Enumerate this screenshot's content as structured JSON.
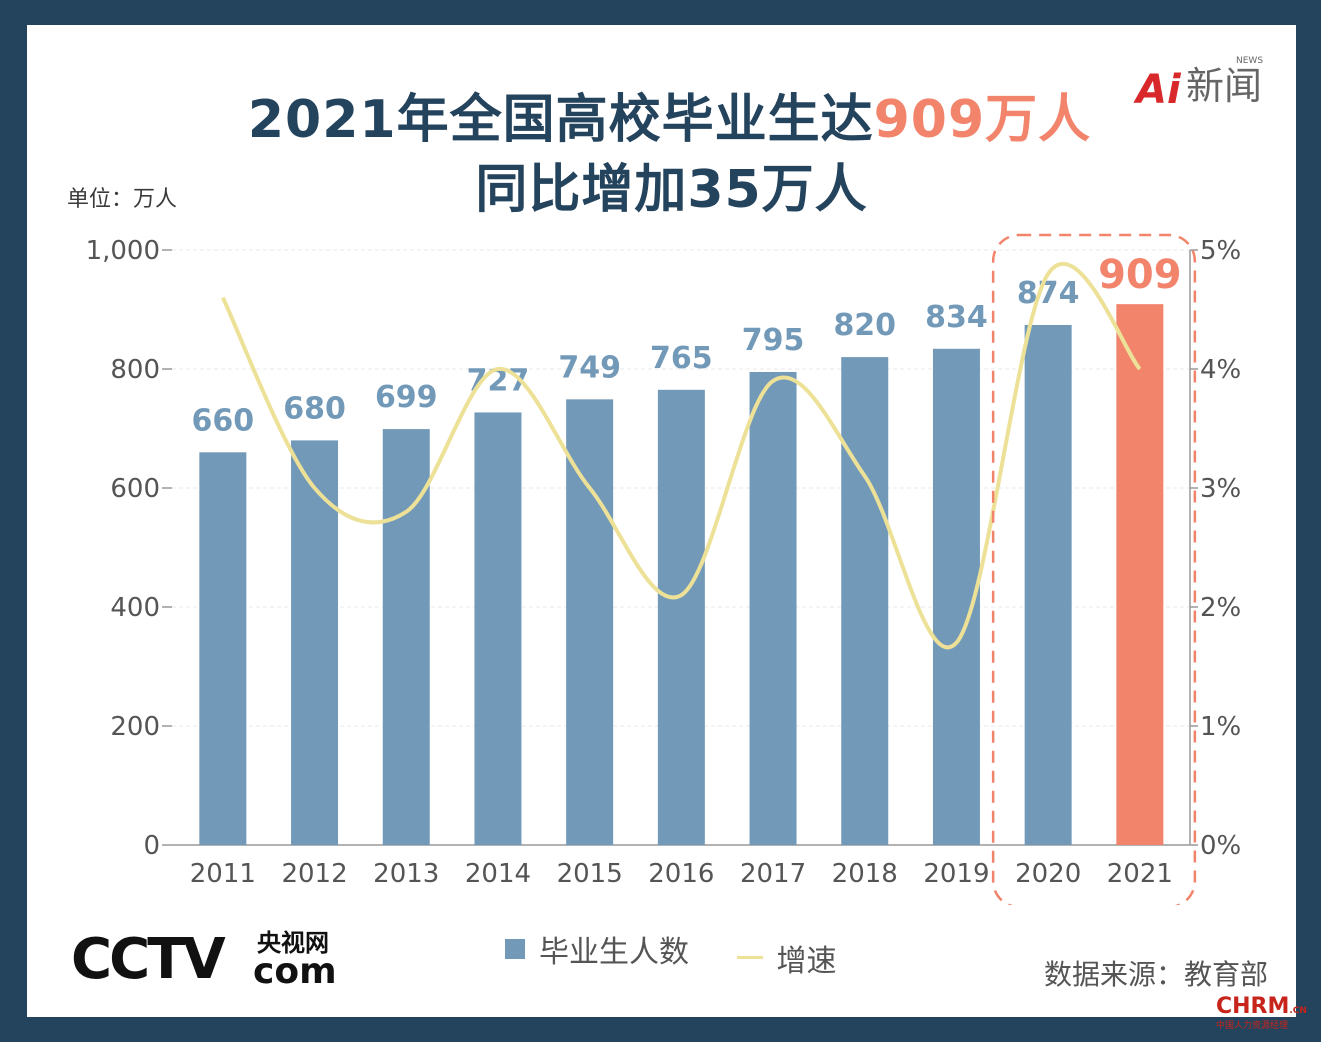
{
  "header": {
    "title_line1_prefix": "2021年全国高校毕业生达",
    "title_line1_highlight": "909万人",
    "title_line2": "同比增加35万人"
  },
  "unit_label": "单位：万人",
  "logo": {
    "brand_ai": "Ai",
    "brand_cn": "新闻",
    "brand_en": "NEWS"
  },
  "legend": {
    "bars_label": "毕业生人数",
    "line_label": "增速"
  },
  "source": "数据来源：教育部",
  "footer": {
    "cctv_text": "CCTV",
    "cctv_cn": "央视网",
    "cctv_com": "com",
    "chrm_text": "CHRM",
    "chrm_cn": ".CN",
    "chrm_sub": "中国人力资源经理"
  },
  "colors": {
    "bar": "#7299b8",
    "bar_highlight": "#f2846c",
    "line": "#ede198",
    "title": "#24435d",
    "highlight_box": "#f2846c"
  },
  "chart_data": {
    "type": "bar",
    "categories": [
      "2011",
      "2012",
      "2013",
      "2014",
      "2015",
      "2016",
      "2017",
      "2018",
      "2019",
      "2020",
      "2021"
    ],
    "series": [
      {
        "name": "毕业生人数",
        "type": "bar",
        "axis": "left",
        "values": [
          660,
          680,
          699,
          727,
          749,
          765,
          795,
          820,
          834,
          874,
          909
        ],
        "data_labels": [
          "660",
          "680",
          "699",
          "727",
          "749",
          "765",
          "795",
          "820",
          "834",
          "874",
          "909"
        ]
      },
      {
        "name": "增速",
        "type": "line",
        "axis": "right",
        "smooth": true,
        "values": [
          4.6,
          3.0,
          2.8,
          4.0,
          3.0,
          2.1,
          3.9,
          3.1,
          1.7,
          4.8,
          4.0
        ]
      }
    ],
    "y_left": {
      "ticks": [
        "0",
        "200",
        "400",
        "600",
        "800",
        "1,000"
      ],
      "tick_values": [
        0,
        200,
        400,
        600,
        800,
        1000
      ],
      "ylim": [
        0,
        1000
      ]
    },
    "y_right": {
      "ticks": [
        "0%",
        "1%",
        "2%",
        "3%",
        "4%",
        "5%"
      ],
      "tick_values": [
        0,
        1,
        2,
        3,
        4,
        5
      ],
      "ylim": [
        0,
        5
      ]
    },
    "highlight_categories": [
      "2020",
      "2021"
    ],
    "highlight_bar": "2021",
    "grid": true,
    "legend_position": "bottom-center"
  }
}
